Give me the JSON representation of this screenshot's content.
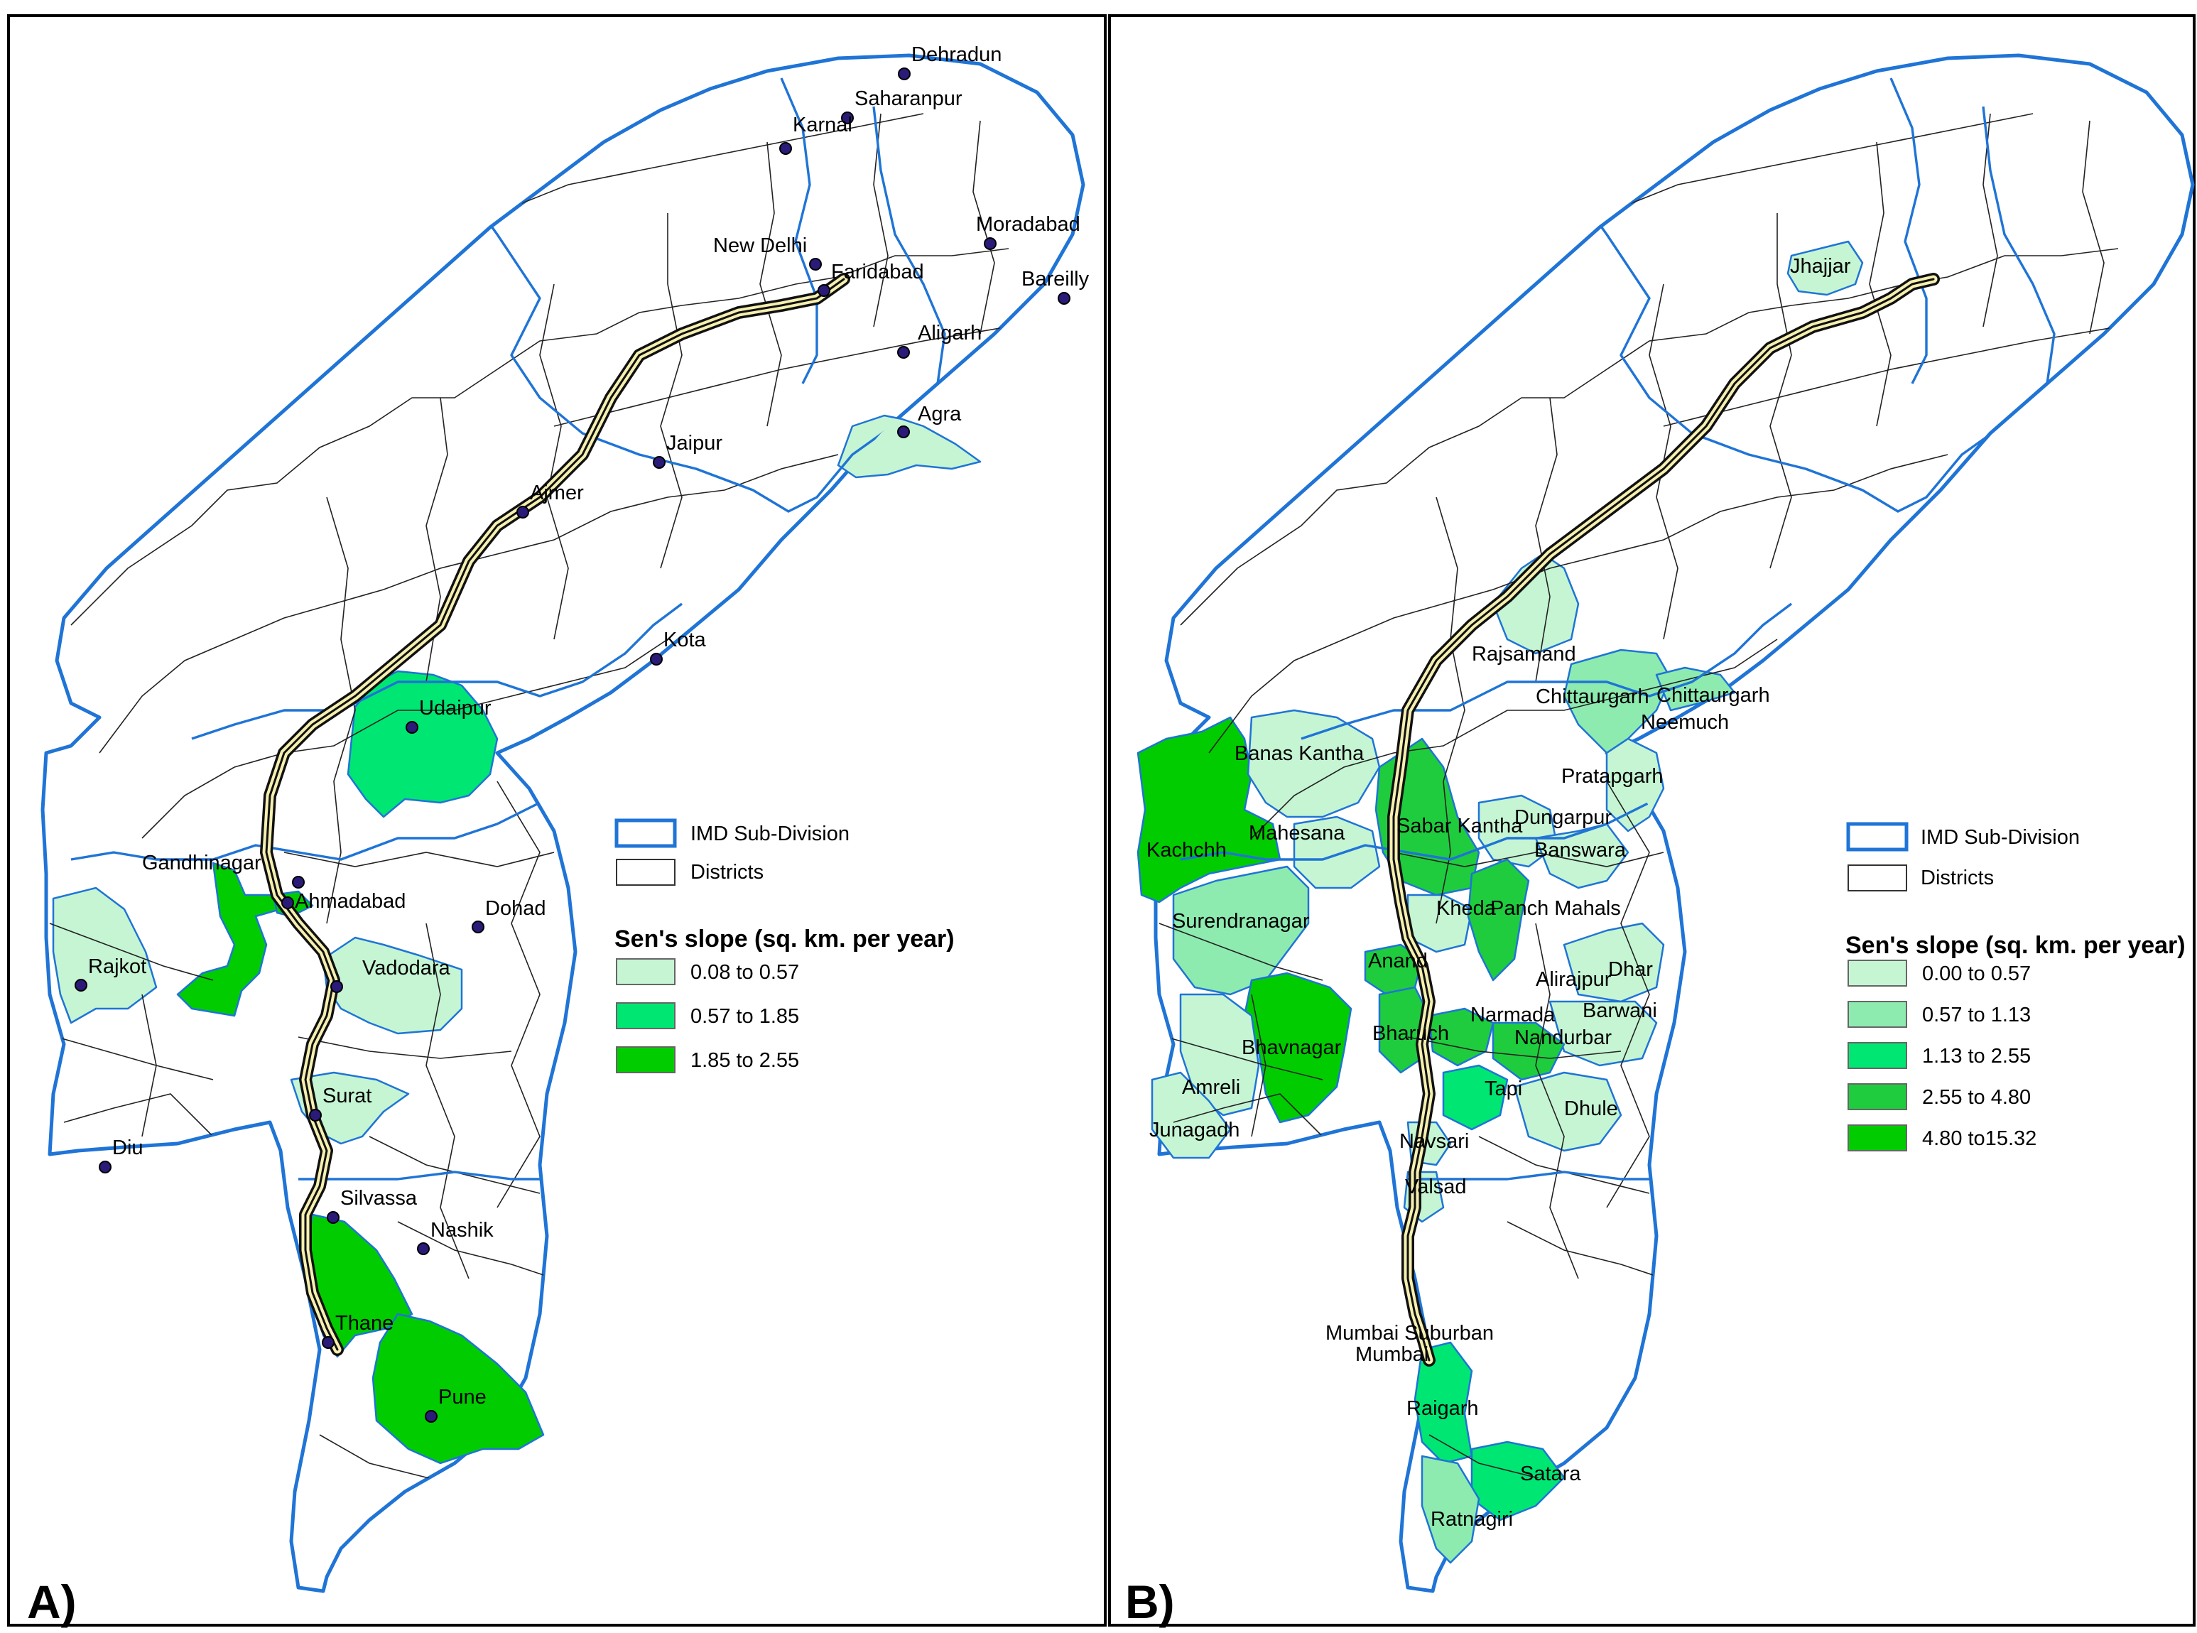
{
  "colors": {
    "class_1": "#c5f5d3",
    "class_2": "#8eebb0",
    "class_3": "#00e673",
    "class_4": "#1fcc3e",
    "class_5": "#00cc00",
    "subdivision_border": "#1f74d6",
    "corridor_fill": "#f6f0b0"
  },
  "panel_a": {
    "letter": "A)",
    "legend": {
      "subdivision_label": "IMD Sub-Division",
      "districts_label": "Districts",
      "title": "Sen's slope (sq. km. per year)",
      "classes": [
        {
          "label": "0.08 to 0.57",
          "color": "#c5f5d3"
        },
        {
          "label": "0.57 to 1.85",
          "color": "#00e673"
        },
        {
          "label": "1.85 to 2.55",
          "color": "#00cc00"
        }
      ]
    },
    "cities": [
      "Dehradun",
      "Saharanpur",
      "Karnal",
      "Moradabad",
      "New Delhi",
      "Faridabad",
      "Bareilly",
      "Aligarh",
      "Agra",
      "Jaipur",
      "Ajmer",
      "Kota",
      "Udaipur",
      "Gandhinagar",
      "Ahmadabad",
      "Dohad",
      "Rajkot",
      "Vadodara",
      "Surat",
      "Diu",
      "Silvassa",
      "Nashik",
      "Thane",
      "Pune"
    ]
  },
  "panel_b": {
    "letter": "B)",
    "legend": {
      "subdivision_label": "IMD Sub-Division",
      "districts_label": "Districts",
      "title": "Sen's slope (sq. km. per year)",
      "classes": [
        {
          "label": "0.00 to 0.57",
          "color": "#c5f5d3"
        },
        {
          "label": "0.57 to 1.13",
          "color": "#8eebb0"
        },
        {
          "label": "1.13 to 2.55",
          "color": "#00e673"
        },
        {
          "label": "2.55 to 4.80",
          "color": "#1fcc3e"
        },
        {
          "label": "4.80 to15.32",
          "color": "#00cc00"
        }
      ]
    },
    "districts": [
      "Jhajjar",
      "Rajsamand",
      "Chittaurgarh",
      "Chittaurgarh",
      "Neemuch",
      "Banas Kantha",
      "Pratapgarh",
      "Kachchh",
      "Mahesana",
      "Sabar Kantha",
      "Dungarpur",
      "Banswara",
      "Surendranagar",
      "Kheda",
      "Panch Mahals",
      "Anand",
      "Alirajpur",
      "Dhar",
      "Bhavnagar",
      "Bharuch",
      "Narmada",
      "Barwani",
      "Nandurbar",
      "Amreli",
      "Tapi",
      "Dhule",
      "Junagadh",
      "Navsari",
      "Valsad",
      "Mumbai Suburban",
      "Mumbai",
      "Raigarh",
      "Satara",
      "Ratnagiri"
    ]
  }
}
